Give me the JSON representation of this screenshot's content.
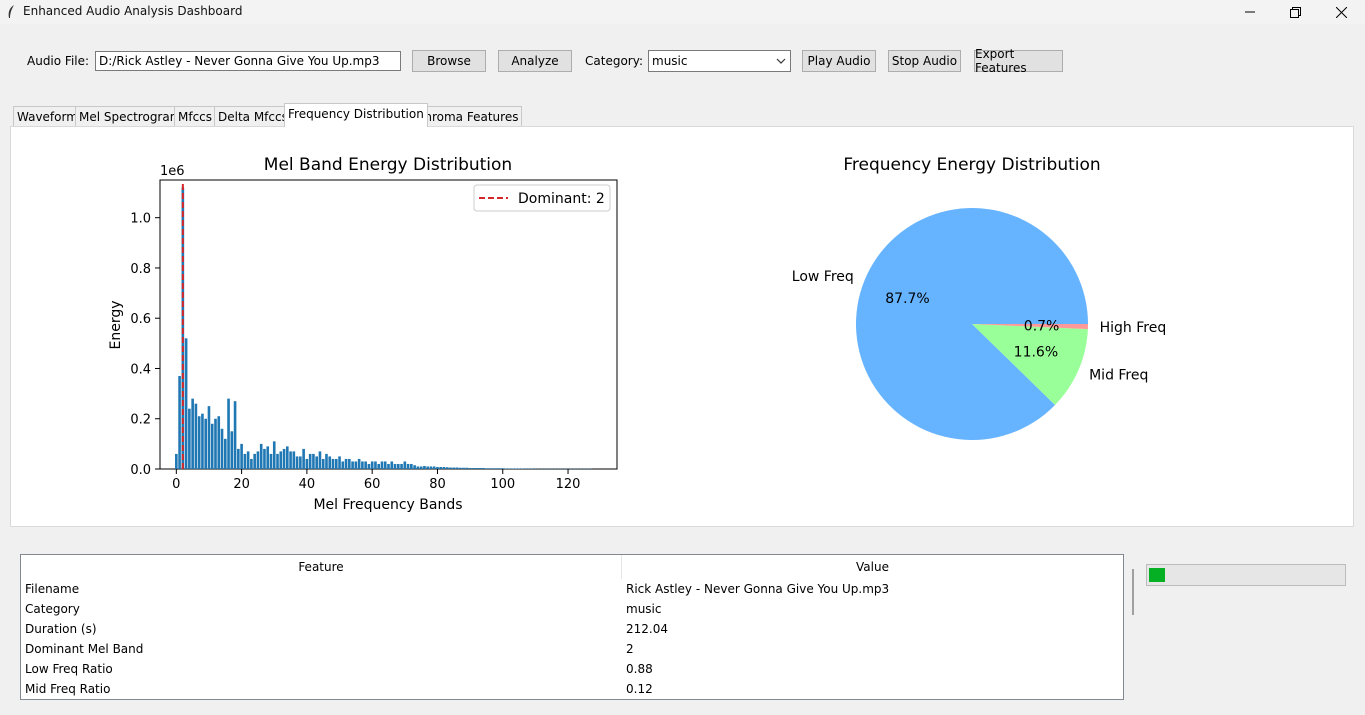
{
  "window": {
    "title": "Enhanced Audio Analysis Dashboard"
  },
  "toolbar": {
    "audio_file_label": "Audio File:",
    "audio_file_value": "D:/Rick Astley - Never Gonna Give You Up.mp3",
    "browse_label": "Browse",
    "analyze_label": "Analyze",
    "category_label": "Category:",
    "category_value": "music",
    "play_label": "Play Audio",
    "stop_label": "Stop Audio",
    "export_label": "Export Features"
  },
  "tabs": [
    {
      "label": "Waveform"
    },
    {
      "label": "Mel Spectrogram"
    },
    {
      "label": "Mfccs"
    },
    {
      "label": "Delta Mfccs"
    },
    {
      "label": "Frequency Distribution",
      "active": true
    },
    {
      "label": "Chroma Features"
    }
  ],
  "chart_data": [
    {
      "type": "bar",
      "title": "Mel Band Energy Distribution",
      "xlabel": "Mel Frequency Bands",
      "ylabel": "Energy",
      "y_scale_label": "1e6",
      "xlim": [
        -5,
        135
      ],
      "ylim": [
        0,
        1.15
      ],
      "x_ticks": [
        0,
        20,
        40,
        60,
        80,
        100,
        120
      ],
      "y_ticks": [
        0.0,
        0.2,
        0.4,
        0.6,
        0.8,
        1.0
      ],
      "y_tick_labels": [
        "0.0",
        "0.2",
        "0.4",
        "0.6",
        "0.8",
        "1.0"
      ],
      "legend": {
        "label": "Dominant: 2",
        "placement": "top-right"
      },
      "dominant_band": 2,
      "bar_color": "#1f77b4",
      "dominant_line_color": "#d62728",
      "values": [
        0.06,
        0.37,
        1.12,
        0.52,
        0.24,
        0.28,
        0.26,
        0.21,
        0.22,
        0.2,
        0.25,
        0.18,
        0.2,
        0.21,
        0.16,
        0.12,
        0.28,
        0.15,
        0.27,
        0.08,
        0.1,
        0.06,
        0.07,
        0.04,
        0.06,
        0.07,
        0.1,
        0.08,
        0.09,
        0.06,
        0.11,
        0.06,
        0.07,
        0.08,
        0.09,
        0.07,
        0.07,
        0.05,
        0.05,
        0.08,
        0.04,
        0.06,
        0.06,
        0.05,
        0.07,
        0.04,
        0.06,
        0.05,
        0.04,
        0.04,
        0.05,
        0.03,
        0.04,
        0.04,
        0.03,
        0.03,
        0.04,
        0.03,
        0.03,
        0.02,
        0.03,
        0.03,
        0.02,
        0.03,
        0.03,
        0.02,
        0.03,
        0.02,
        0.02,
        0.02,
        0.03,
        0.02,
        0.02,
        0.015,
        0.01,
        0.01,
        0.012,
        0.01,
        0.01,
        0.01,
        0.008,
        0.008,
        0.008,
        0.007,
        0.006,
        0.006,
        0.006,
        0.005,
        0.005,
        0.005,
        0.004,
        0.004,
        0.004,
        0.004,
        0.004,
        0.003,
        0.003,
        0.003,
        0.003,
        0.003,
        0.003,
        0.002,
        0.002,
        0.002,
        0.002,
        0.002,
        0.002,
        0.0015,
        0.0015,
        0.0015,
        0.001,
        0.001,
        0.001,
        0.001,
        0.001,
        0.001,
        0.001,
        0.001,
        0.001,
        0.001,
        0.001,
        0.001,
        0.001,
        0.001,
        0.001,
        0.001,
        0.001,
        0.001
      ]
    },
    {
      "type": "pie",
      "title": "Frequency Energy Distribution",
      "slices": [
        {
          "label": "Low Freq",
          "value": 87.7,
          "pct_label": "87.7%",
          "color": "#66b3ff"
        },
        {
          "label": "Mid Freq",
          "value": 11.6,
          "pct_label": "11.6%",
          "color": "#99ff99"
        },
        {
          "label": "High Freq",
          "value": 0.7,
          "pct_label": "0.7%",
          "color": "#ff9999"
        }
      ]
    }
  ],
  "table": {
    "headers": [
      "Feature",
      "Value"
    ],
    "rows": [
      {
        "feature": "Filename",
        "value": "Rick Astley - Never Gonna Give You Up.mp3"
      },
      {
        "feature": "Category",
        "value": "music"
      },
      {
        "feature": "Duration (s)",
        "value": "212.04"
      },
      {
        "feature": "Dominant Mel Band",
        "value": "2"
      },
      {
        "feature": "Low Freq Ratio",
        "value": "0.88"
      },
      {
        "feature": "Mid Freq Ratio",
        "value": "0.12"
      }
    ]
  },
  "progress": {
    "value": 0.08,
    "color": "#06b025"
  }
}
